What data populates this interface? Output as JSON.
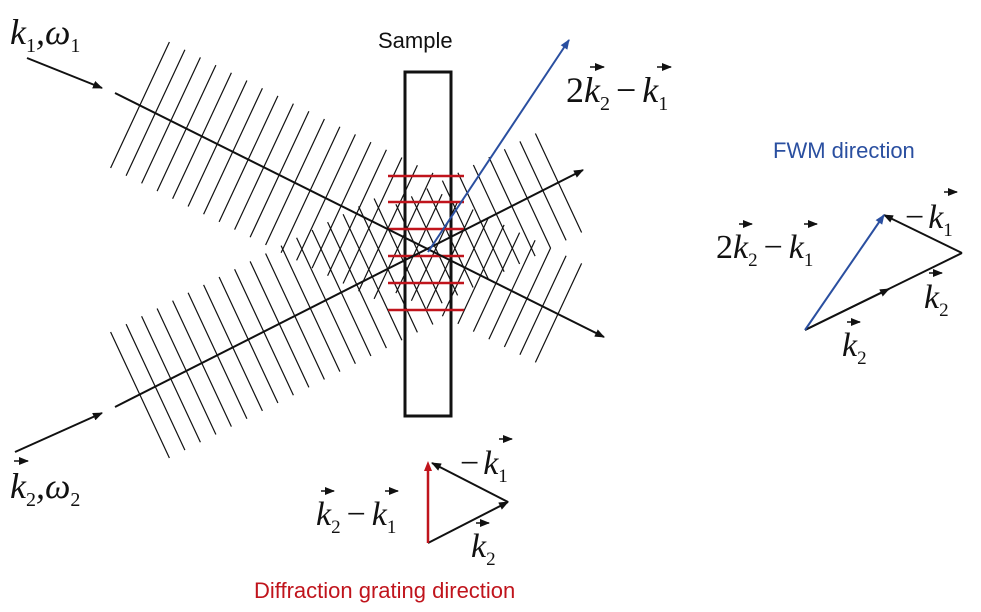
{
  "colors": {
    "ink": "#111111",
    "fwm_blue": "#2a4fa0",
    "grating_red": "#c0141c"
  },
  "labels": {
    "sample": "Sample",
    "fwm_direction": "FWM direction",
    "diffraction_direction": "Diffraction grating direction"
  },
  "beams": {
    "beam1": {
      "k": "k",
      "k_sub": "1",
      "sep": ",",
      "w": "ω",
      "w_sub": "1"
    },
    "beam2": {
      "k": "k",
      "k_sub": "2",
      "sep": ",",
      "w": "ω",
      "w_sub": "2"
    }
  },
  "math": {
    "two": "2",
    "k": "k",
    "minus": "−",
    "sub1": "1",
    "sub2": "2"
  }
}
